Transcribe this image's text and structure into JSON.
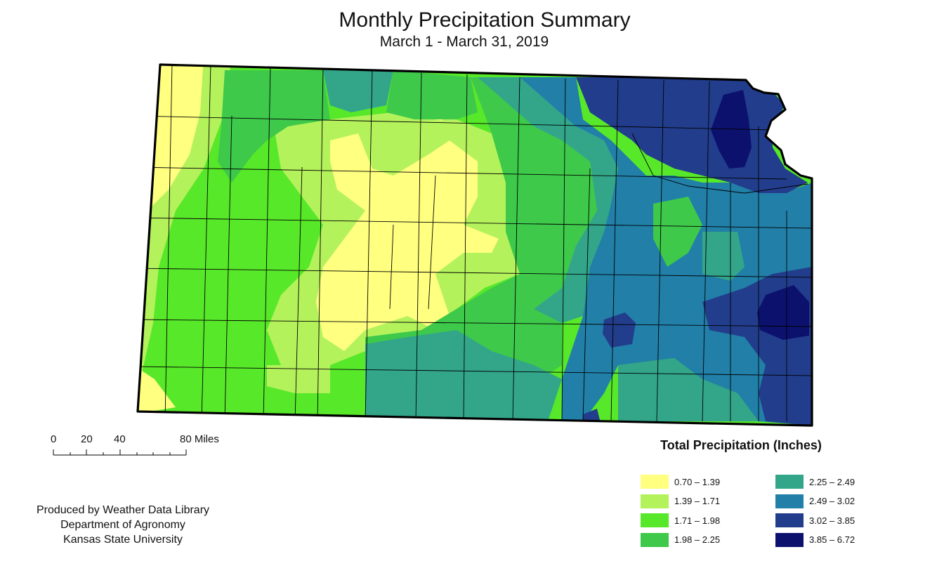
{
  "header": {
    "title": "Monthly Precipitation Summary",
    "subtitle": "March 1 - March 31, 2019"
  },
  "scale_bar": {
    "labels": [
      "0",
      "20",
      "40",
      "80 Miles"
    ]
  },
  "credit": {
    "line1": "Produced by Weather Data Library",
    "line2": "Department of Agronomy",
    "line3": "Kansas State University"
  },
  "legend": {
    "title": "Total Precipitation (Inches)",
    "items": [
      {
        "label": "0.70 – 1.39",
        "color": "#ffff80"
      },
      {
        "label": "1.39 – 1.71",
        "color": "#b4f25c"
      },
      {
        "label": "1.71 – 1.98",
        "color": "#58e82a"
      },
      {
        "label": "1.98 – 2.25",
        "color": "#3ec94a"
      },
      {
        "label": "2.25 – 2.49",
        "color": "#33a68a"
      },
      {
        "label": "2.49 – 3.02",
        "color": "#217fa8"
      },
      {
        "label": "3.02 – 3.85",
        "color": "#223d8c"
      },
      {
        "label": "3.85 – 6.72",
        "color": "#0c116e"
      }
    ]
  }
}
